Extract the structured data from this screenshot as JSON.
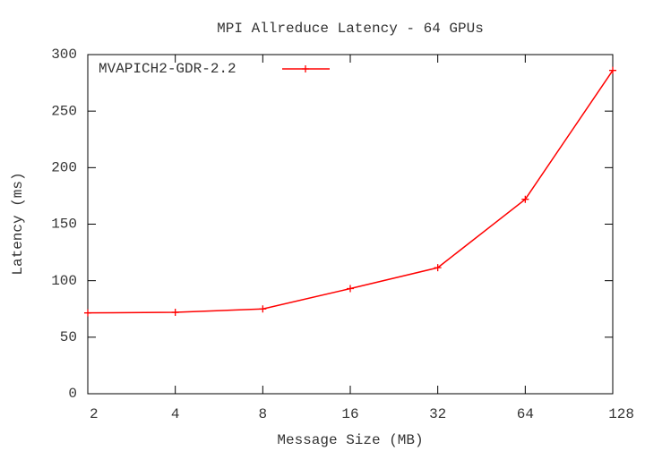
{
  "chart_data": {
    "type": "line",
    "title": "MPI Allreduce Latency - 64 GPUs",
    "xlabel": "Message Size (MB)",
    "ylabel": "Latency (ms)",
    "x": [
      2,
      4,
      8,
      16,
      32,
      64,
      128
    ],
    "xscale": "log",
    "xlim": [
      2,
      128
    ],
    "xticks": [
      2,
      4,
      8,
      16,
      32,
      64,
      128
    ],
    "ylim": [
      0,
      300
    ],
    "yticks": [
      0,
      50,
      100,
      150,
      200,
      250,
      300
    ],
    "grid": false,
    "legend": "upper left",
    "series": [
      {
        "name": "MVAPICH2-GDR-2.2",
        "color": "#ff0000",
        "values": [
          71.5,
          72,
          75,
          93,
          111.5,
          172,
          286
        ]
      }
    ]
  }
}
